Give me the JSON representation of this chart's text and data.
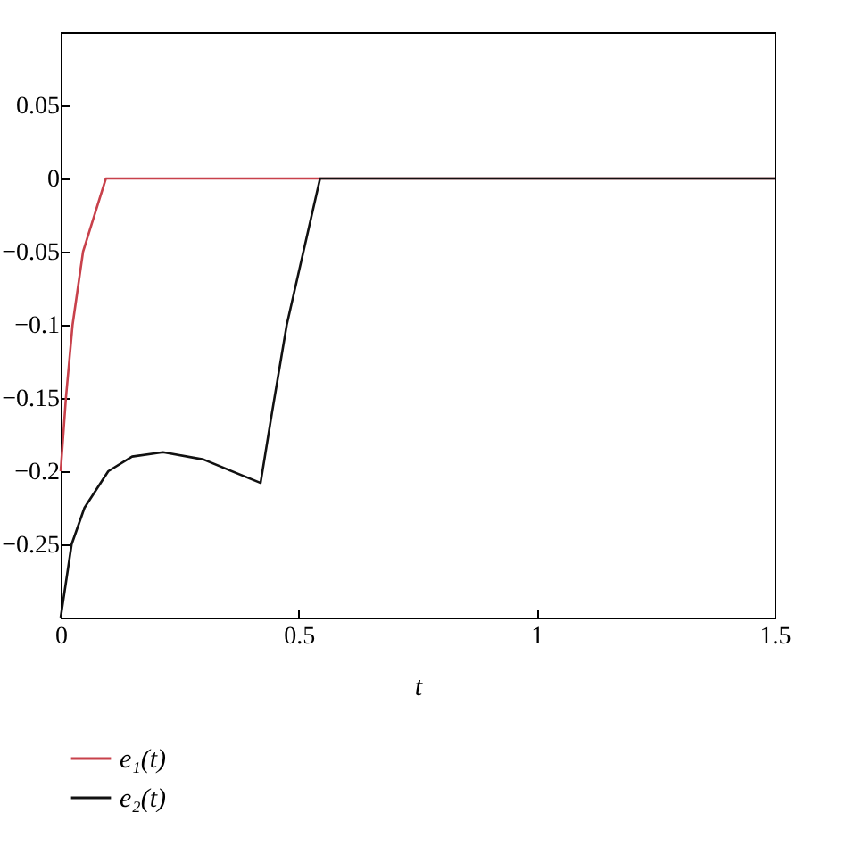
{
  "chart_data": {
    "type": "line",
    "xlabel": "t",
    "xlim": [
      0,
      1.5
    ],
    "xticks": [
      0,
      0.5,
      1,
      1.5
    ],
    "ylim": [
      -0.3,
      0.1
    ],
    "yticks": [
      -0.25,
      -0.2,
      -0.15,
      -0.1,
      -0.05,
      0,
      0.05
    ],
    "grid": false,
    "legend": "bottom left",
    "series": [
      {
        "name": "e₁(t)",
        "color": "#c8414b",
        "x": [
          0,
          0.011,
          0.025,
          0.047,
          0.095,
          1.5
        ],
        "values": [
          -0.2,
          -0.15,
          -0.1,
          -0.05,
          0,
          0
        ]
      },
      {
        "name": "e₂(t)",
        "color": "#111111",
        "x": [
          0,
          0.023,
          0.05,
          0.1,
          0.15,
          0.215,
          0.3,
          0.42,
          0.444,
          0.475,
          0.51,
          0.545,
          1.5
        ],
        "values": [
          -0.3,
          -0.25,
          -0.225,
          -0.2,
          -0.19,
          -0.187,
          -0.192,
          -0.208,
          -0.16,
          -0.1,
          -0.05,
          0,
          0
        ]
      }
    ]
  }
}
